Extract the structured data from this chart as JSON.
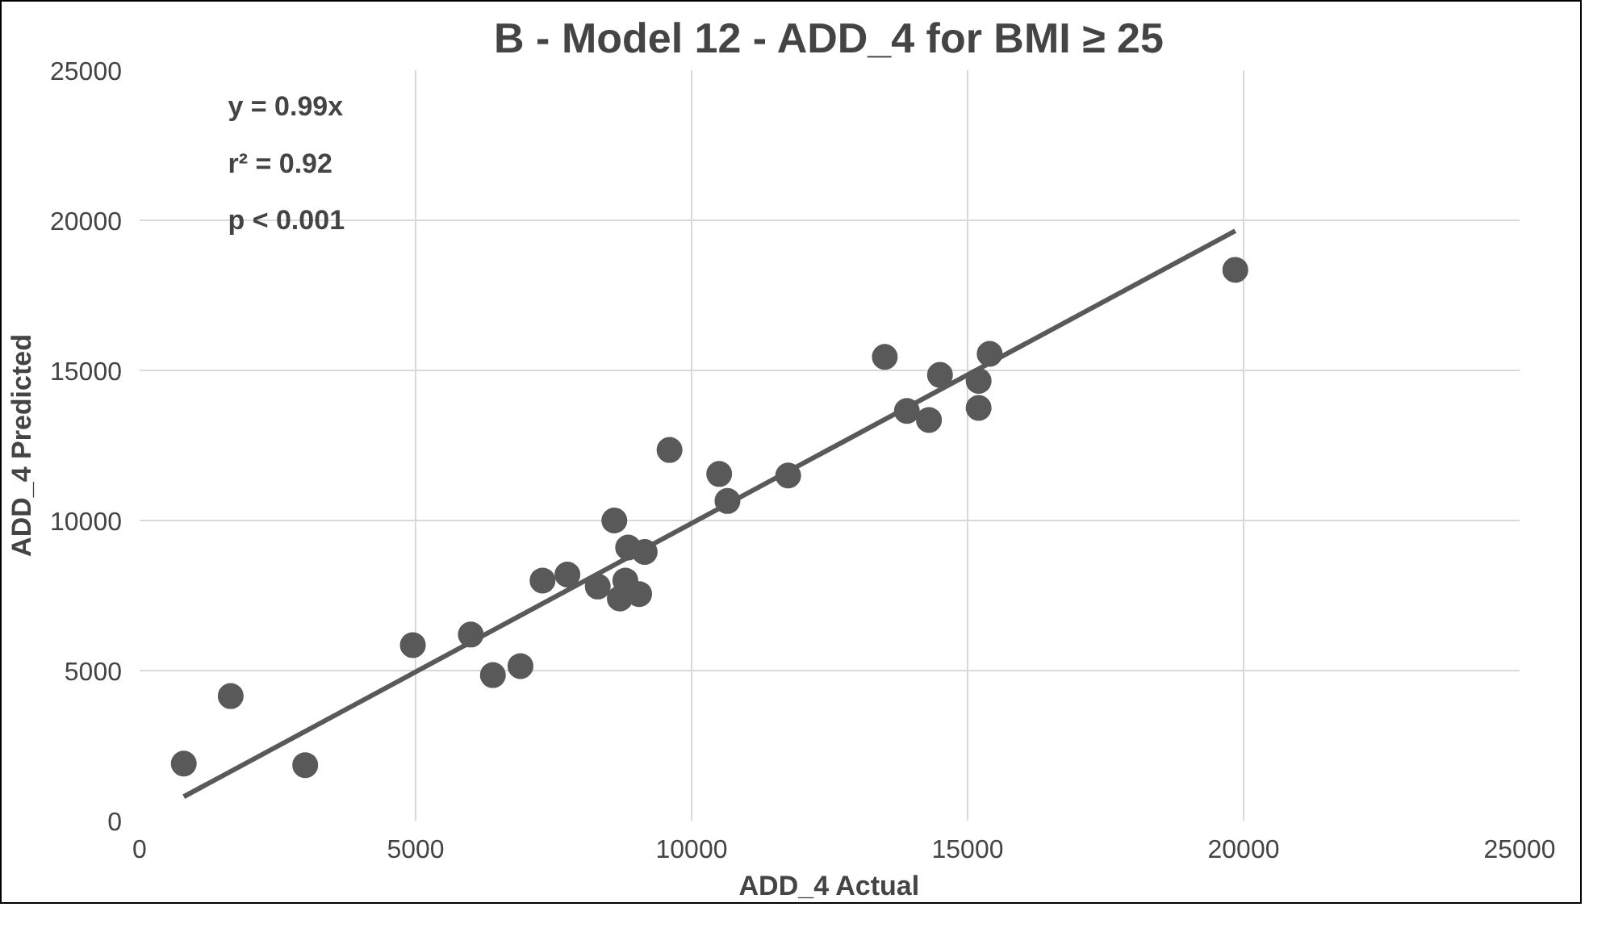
{
  "chart_data": {
    "type": "scatter",
    "title": "B - Model 12 - ADD_4 for BMI ≥ 25",
    "xlabel": "ADD_4 Actual",
    "ylabel": "ADD_4 Predicted",
    "xlim": [
      0,
      25000
    ],
    "xticks": [
      0,
      5000,
      10000,
      15000,
      20000,
      25000
    ],
    "ylim": [
      0,
      25000
    ],
    "yticks": [
      0,
      5000,
      10000,
      15000,
      20000,
      25000
    ],
    "grid": true,
    "marker": "circle",
    "annotations": [
      "y = 0.99x",
      "r² = 0.92",
      "p < 0.001"
    ],
    "series": [
      {
        "color": "#595959",
        "x": [
          800,
          1650,
          3000,
          4950,
          6000,
          6400,
          6900,
          7300,
          7750,
          8300,
          8600,
          8700,
          8800,
          8850,
          9050,
          9150,
          9600,
          10500,
          10650,
          11750,
          13500,
          13900,
          14300,
          14500,
          15200,
          15200,
          15400,
          19850
        ],
        "values": [
          1900,
          4150,
          1850,
          5850,
          6200,
          4850,
          5150,
          8000,
          8200,
          7800,
          10000,
          7400,
          8000,
          9100,
          7550,
          8950,
          12350,
          11550,
          10650,
          11500,
          15450,
          13650,
          13350,
          14850,
          13750,
          14650,
          15550,
          18350
        ]
      },
      {
        "type": "line",
        "marker": "none",
        "color": "#595959",
        "x": [
          800,
          19850
        ],
        "values": [
          800,
          19650
        ]
      }
    ]
  }
}
